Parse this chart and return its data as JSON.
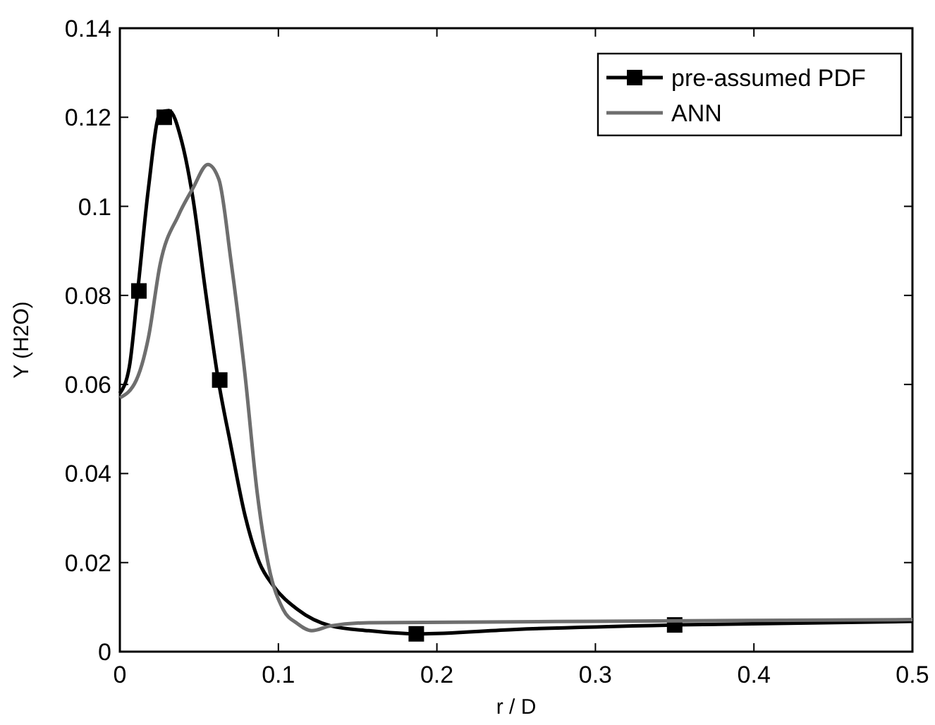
{
  "chart_data": {
    "type": "line",
    "xlabel": "r / D",
    "ylabel": "Y (H2O)",
    "xlim": [
      0,
      0.5
    ],
    "ylim": [
      0,
      0.14
    ],
    "xticks": [
      0,
      0.1,
      0.2,
      0.3,
      0.4,
      0.5
    ],
    "yticks": [
      0,
      0.02,
      0.04,
      0.06,
      0.08,
      {
        "value": 0.1,
        "label": "0.1"
      },
      0.12,
      0.14
    ],
    "grid": false,
    "legend": "top right",
    "series": [
      {
        "name": "pre-assumed PDF",
        "color": "#000000",
        "x": [
          0,
          0.006,
          0.0114,
          0.018,
          0.0254,
          0.031,
          0.039,
          0.046,
          0.054,
          0.062,
          0.07,
          0.079,
          0.088,
          0.097,
          0.112,
          0.133,
          0.157,
          0.188,
          0.25,
          0.35,
          0.5
        ],
        "values": [
          0.058,
          0.064,
          0.0815,
          0.104,
          0.121,
          0.1215,
          0.1146,
          0.102,
          0.081,
          0.0612,
          0.0463,
          0.0305,
          0.02,
          0.0147,
          0.0095,
          0.0058,
          0.0047,
          0.004,
          0.005,
          0.006,
          0.0068
        ]
      },
      {
        "type": "scatter",
        "marker": "square",
        "color": "#000000",
        "x": [
          0.012,
          0.028,
          0.063,
          0.187,
          0.35
        ],
        "values": [
          0.081,
          0.12,
          0.061,
          0.004,
          0.006
        ]
      },
      {
        "name": "ANN",
        "color": "#6e6e6e",
        "x": [
          0,
          0.0104,
          0.018,
          0.0254,
          0.037,
          0.046,
          0.0555,
          0.0625,
          0.07,
          0.079,
          0.0866,
          0.094,
          0.103,
          0.112,
          0.121,
          0.133,
          0.157,
          0.3,
          0.5
        ],
        "values": [
          0.057,
          0.061,
          0.0705,
          0.087,
          0.098,
          0.104,
          0.1094,
          0.106,
          0.088,
          0.062,
          0.0358,
          0.019,
          0.0095,
          0.0063,
          0.0047,
          0.0058,
          0.0065,
          0.0068,
          0.0072
        ]
      }
    ]
  }
}
